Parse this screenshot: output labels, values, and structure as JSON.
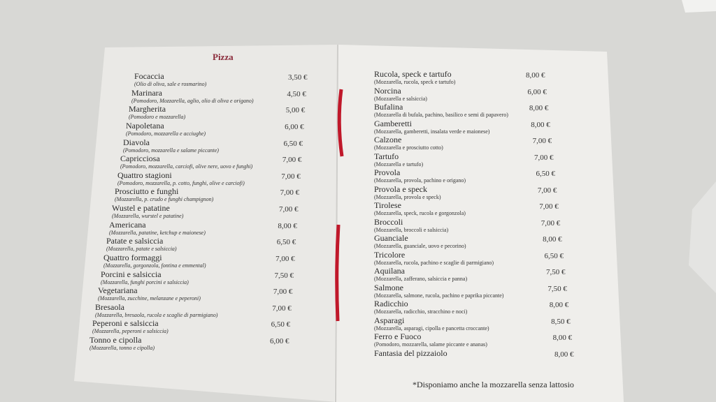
{
  "menu": {
    "section_title": "Pizza",
    "left_page": [
      {
        "name": "Focaccia",
        "desc": "(Olio di oliva, sale e rosmarino)",
        "price": "3,50 €"
      },
      {
        "name": "Marinara",
        "desc": "(Pomodoro, Mozzarella, aglio, olio di oliva e origano)",
        "price": "4,50 €"
      },
      {
        "name": "Margherita",
        "desc": "(Pomodoro e mozzarella)",
        "price": "5,00 €"
      },
      {
        "name": "Napoletana",
        "desc": "(Pomodoro, mozzarella e acciughe)",
        "price": "6,00 €"
      },
      {
        "name": "Diavola",
        "desc": "(Pomodoro, mozzarella e salame piccante)",
        "price": "6,50 €"
      },
      {
        "name": "Capricciosa",
        "desc": "(Pomodoro, mozzarella, carciofi, olive nere, uovo e funghi)",
        "price": "7,00 €"
      },
      {
        "name": "Quattro stagioni",
        "desc": "(Pomodoro, mozzarella, p. cotto, funghi, olive e carciofi)",
        "price": "7,00 €"
      },
      {
        "name": "Prosciutto e funghi",
        "desc": "(Mozzarella, p. crudo e funghi champignon)",
        "price": "7,00 €"
      },
      {
        "name": "Wustel e patatine",
        "desc": "(Mozzarella, wurstel e patatine)",
        "price": "7,00 €"
      },
      {
        "name": "Americana",
        "desc": "(Mozzarella, patatine, ketchup e maionese)",
        "price": "8,00 €"
      },
      {
        "name": "Patate e salsiccia",
        "desc": "(Mozzarella, patate e salsiccia)",
        "price": "6,50 €"
      },
      {
        "name": "Quattro formaggi",
        "desc": "(Mozzarella, gorgonzola, fontina e emmental)",
        "price": "7,00 €"
      },
      {
        "name": "Porcini e salsiccia",
        "desc": "(Mozzarella, funghi porcini e salsiccia)",
        "price": "7,50 €"
      },
      {
        "name": "Vegetariana",
        "desc": "(Mozzarella, zucchine, melanzane e peperoni)",
        "price": "7,00 €"
      },
      {
        "name": "Bresaola",
        "desc": "(Mozzarella, bresaola, rucola e scaglie di parmigiano)",
        "price": "7,00 €"
      },
      {
        "name": "Peperoni e salsiccia",
        "desc": "(Mozzarella, peperoni e salsiccia)",
        "price": "6,50 €"
      },
      {
        "name": "Tonno e cipolla",
        "desc": "(Mozzarella, tonno e cipolla)",
        "price": "6,00 €"
      }
    ],
    "right_page": [
      {
        "name": "Rucola, speck e tartufo",
        "desc": "(Mozzarella, rucola, speck e tartufo)",
        "price": "8,00 €"
      },
      {
        "name": "Norcina",
        "desc": "(Mozzarella e salsiccia)",
        "price": "6,00 €"
      },
      {
        "name": "Bufalina",
        "desc": "(Mozzarella di bufala, pachino, basilico e semi di papavero)",
        "price": "8,00 €"
      },
      {
        "name": "Gamberetti",
        "desc": "(Mozzarella, gamberetti, insalata verde e maionese)",
        "price": "8,00 €"
      },
      {
        "name": "Calzone",
        "desc": "(Mozzarella e prosciutto cotto)",
        "price": "7,00 €"
      },
      {
        "name": "Tartufo",
        "desc": "(Mozzarella e tartufo)",
        "price": "7,00 €"
      },
      {
        "name": "Provola",
        "desc": "(Mozzarella, provola, pachino e origano)",
        "price": "6,50 €"
      },
      {
        "name": "Provola e speck",
        "desc": "(Mozzarella, provola e speck)",
        "price": "7,00 €"
      },
      {
        "name": "Tirolese",
        "desc": "(Mozzarella, speck, rucola e gorgonzola)",
        "price": "7,00 €"
      },
      {
        "name": "Broccoli",
        "desc": "(Mozzarella, broccoli e salsiccia)",
        "price": "7,00 €"
      },
      {
        "name": "Guanciale",
        "desc": "(Mozzarella, guanciale, uovo e pecorino)",
        "price": "8,00 €"
      },
      {
        "name": "Tricolore",
        "desc": "(Mozzarella, rucola, pachino e scaglie di parmigiano)",
        "price": "6,50 €"
      },
      {
        "name": "Aquilana",
        "desc": "(Mozzarella, zafferano, salsiccia e panna)",
        "price": "7,50 €"
      },
      {
        "name": "Salmone",
        "desc": "(Mozzarella, salmone, rucola, pachino e paprika piccante)",
        "price": "7,50 €"
      },
      {
        "name": "Radicchio",
        "desc": "(Mozzarella, radicchio, stracchino e noci)",
        "price": "8,00 €"
      },
      {
        "name": "Asparagi",
        "desc": "(Mozzarella, asparagi, cipolla e pancetta croccante)",
        "price": "8,50 €"
      },
      {
        "name": "Ferro e Fuoco",
        "desc": "(Pomodoro, mozzarella, salame piccante e ananas)",
        "price": "8,00 €"
      },
      {
        "name": "Fantasia del pizzaiolo",
        "desc": "",
        "price": "8,00 €"
      }
    ],
    "footnote": "*Disponiamo anche la mozzarella senza lattosio"
  },
  "colors": {
    "title": "#8a2a3a",
    "ribbon": "#c0182a",
    "paper": "#edece9",
    "table": "#d8d8d5"
  }
}
